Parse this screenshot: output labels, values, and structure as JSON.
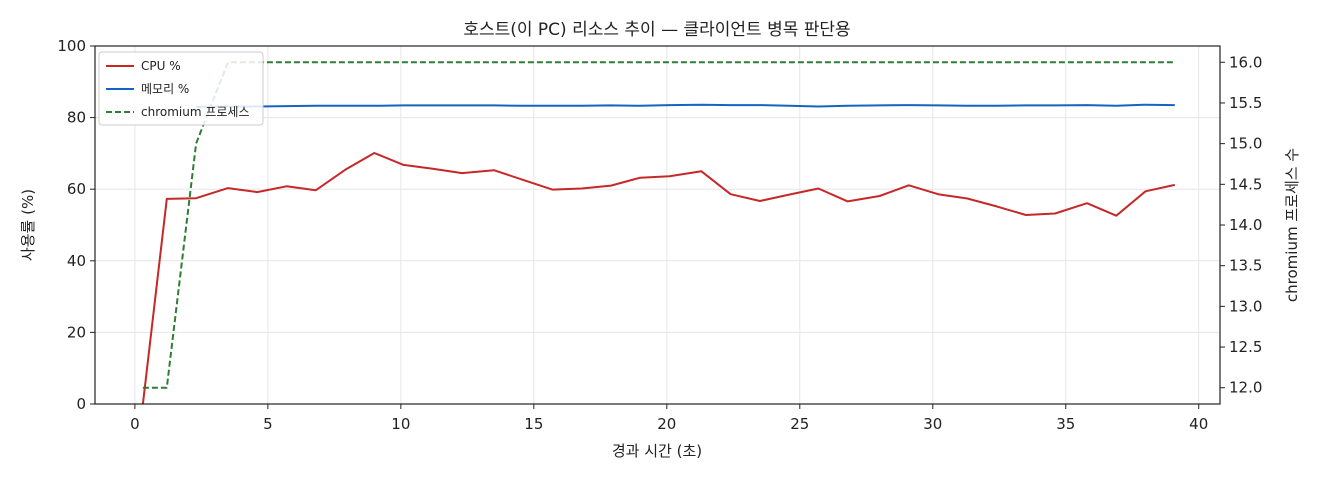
{
  "chart_data": {
    "type": "line",
    "title": "호스트(이 PC) 리소스 추이 — 클라이언트 병목 판단용",
    "xlabel": "경과 시간 (초)",
    "ylabel": "사용률 (%)",
    "y2label": "chromium 프로세스 수",
    "xlim": [
      -1.5,
      40.8
    ],
    "ylim": [
      0,
      100
    ],
    "y2lim": [
      11.8,
      16.2
    ],
    "xticks": [
      0,
      5,
      10,
      15,
      20,
      25,
      30,
      35,
      40
    ],
    "yticks": [
      0,
      20,
      40,
      60,
      80,
      100
    ],
    "y2ticks": [
      12.0,
      12.5,
      13.0,
      13.5,
      14.0,
      14.5,
      15.0,
      15.5,
      16.0
    ],
    "grid": true,
    "legend_position": "top-left",
    "series": [
      {
        "name": "CPU %",
        "axis": "left",
        "color": "#c62828",
        "style": "solid",
        "x": [
          0.3,
          1.2,
          2.3,
          3.5,
          4.6,
          5.7,
          6.8,
          7.9,
          9.0,
          10.1,
          11.2,
          12.3,
          13.5,
          14.6,
          15.7,
          16.8,
          17.9,
          19.0,
          20.1,
          21.3,
          22.4,
          23.5,
          24.6,
          25.7,
          26.8,
          28.0,
          29.1,
          30.2,
          31.3,
          32.4,
          33.5,
          34.6,
          35.8,
          36.9,
          38.0,
          39.1
        ],
        "values": [
          0,
          57.3,
          57.5,
          60.3,
          59.2,
          60.8,
          59.7,
          65.4,
          70.1,
          66.8,
          65.7,
          64.5,
          65.3,
          62.6,
          59.9,
          60.2,
          61.0,
          63.2,
          63.6,
          65.0,
          58.6,
          56.7,
          58.5,
          60.2,
          56.6,
          58.1,
          61.1,
          58.6,
          57.4,
          55.2,
          52.8,
          53.2,
          56.1,
          52.6,
          59.4,
          61.2
        ]
      },
      {
        "name": "메모리 %",
        "axis": "left",
        "color": "#1565c0",
        "style": "solid",
        "x": [
          2.3,
          3.5,
          4.6,
          5.7,
          6.8,
          7.9,
          9.0,
          10.1,
          11.2,
          12.3,
          13.5,
          14.6,
          15.7,
          16.8,
          17.9,
          19.0,
          20.1,
          21.3,
          22.4,
          23.5,
          24.6,
          25.7,
          26.8,
          28.0,
          29.1,
          30.2,
          31.3,
          32.4,
          33.5,
          34.6,
          35.8,
          36.9,
          38.0,
          39.1
        ],
        "values": [
          83.0,
          83.1,
          83.1,
          83.2,
          83.3,
          83.3,
          83.3,
          83.4,
          83.4,
          83.4,
          83.4,
          83.3,
          83.3,
          83.3,
          83.4,
          83.3,
          83.5,
          83.6,
          83.5,
          83.5,
          83.3,
          83.1,
          83.3,
          83.4,
          83.5,
          83.4,
          83.3,
          83.3,
          83.4,
          83.4,
          83.5,
          83.3,
          83.6,
          83.5
        ]
      },
      {
        "name": "chromium 프로세스",
        "axis": "right",
        "color": "#2e7d32",
        "style": "dashed",
        "x": [
          0.3,
          1.2,
          2.3,
          3.5,
          4.6,
          5.7,
          6.8,
          7.9,
          9.0,
          10.1,
          11.2,
          12.3,
          13.5,
          14.6,
          15.7,
          16.8,
          17.9,
          19.0,
          20.1,
          21.3,
          22.4,
          23.5,
          24.6,
          25.7,
          26.8,
          28.0,
          29.1,
          30.2,
          31.3,
          32.4,
          33.5,
          34.6,
          35.8,
          36.9,
          38.0,
          39.1
        ],
        "values": [
          12,
          12,
          15,
          16,
          16,
          16,
          16,
          16,
          16,
          16,
          16,
          16,
          16,
          16,
          16,
          16,
          16,
          16,
          16,
          16,
          16,
          16,
          16,
          16,
          16,
          16,
          16,
          16,
          16,
          16,
          16,
          16,
          16,
          16,
          16,
          16
        ]
      }
    ]
  }
}
